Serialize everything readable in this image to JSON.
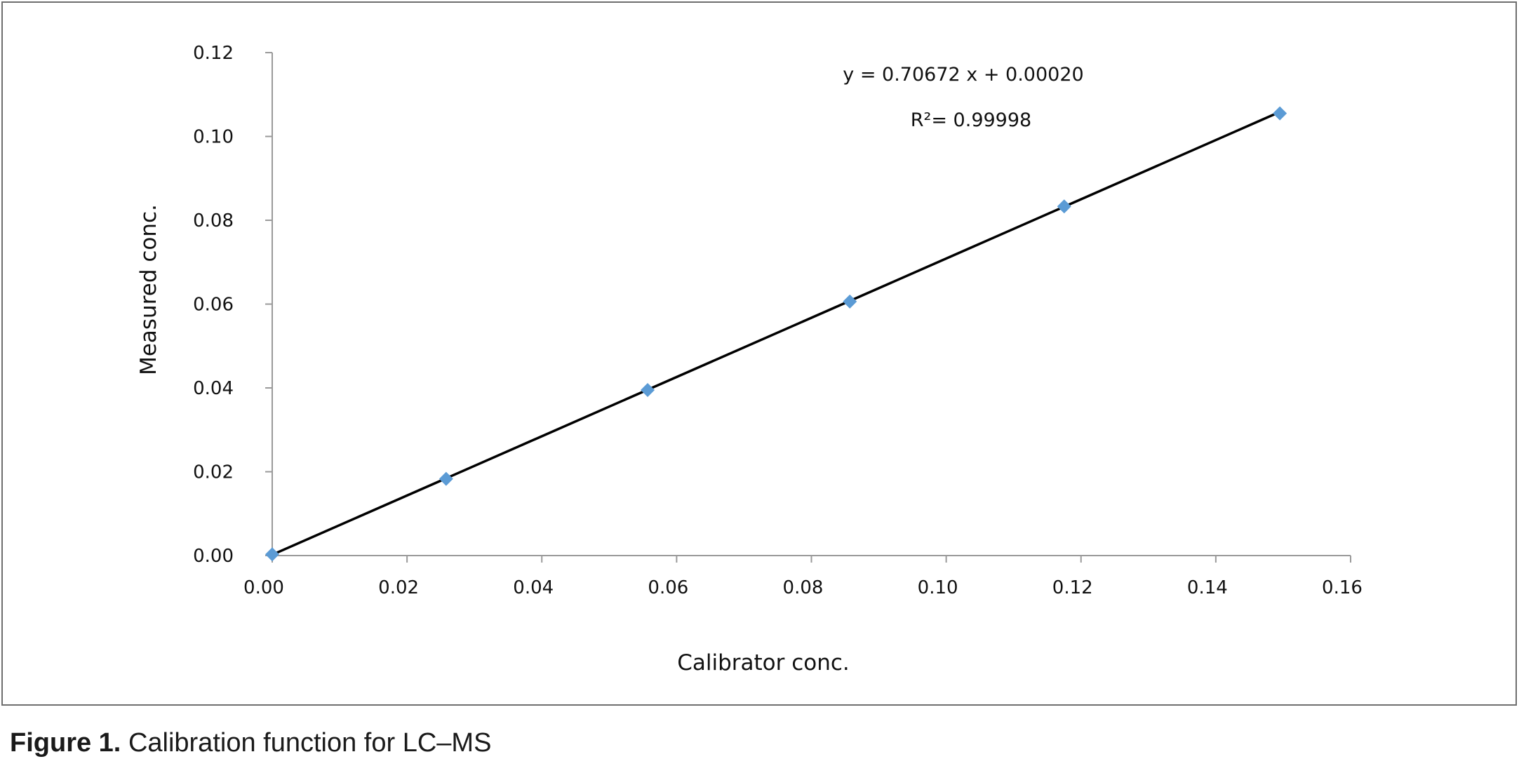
{
  "caption": {
    "figure_label": "Figure 1.",
    "text": "Calibration function for LC–MS"
  },
  "chart_data": {
    "type": "scatter",
    "title": "",
    "xlabel": "Calibrator conc.",
    "ylabel": "Measured conc.",
    "xlim": [
      0,
      0.16
    ],
    "ylim": [
      0,
      0.12
    ],
    "x_ticks": [
      "0.00",
      "0.02",
      "0.04",
      "0.06",
      "0.08",
      "0.10",
      "0.12",
      "0.14",
      "0.16"
    ],
    "y_ticks": [
      "0.00",
      "0.02",
      "0.04",
      "0.06",
      "0.08",
      "0.10",
      "0.12"
    ],
    "x_tick_values": [
      0,
      0.02,
      0.04,
      0.06,
      0.08,
      0.1,
      0.12,
      0.14,
      0.16
    ],
    "y_tick_values": [
      0,
      0.02,
      0.04,
      0.06,
      0.08,
      0.1,
      0.12
    ],
    "series": [
      {
        "x": [
          0.0,
          0.0258,
          0.0557,
          0.0857,
          0.1175,
          0.1495
        ],
        "y": [
          0.0003,
          0.0183,
          0.0395,
          0.0606,
          0.0833,
          0.1055
        ],
        "marker": "diamond",
        "color": "#5b9bd5"
      }
    ],
    "trendline": {
      "slope": 0.70672,
      "intercept": 0.0002,
      "x_range": [
        0.0,
        0.1495
      ],
      "color": "#000000"
    },
    "annotations": {
      "equation": "y = 0.70672 x + 0.00020",
      "r_squared": "R²= 0.99998"
    },
    "grid": false,
    "legend": "none"
  }
}
